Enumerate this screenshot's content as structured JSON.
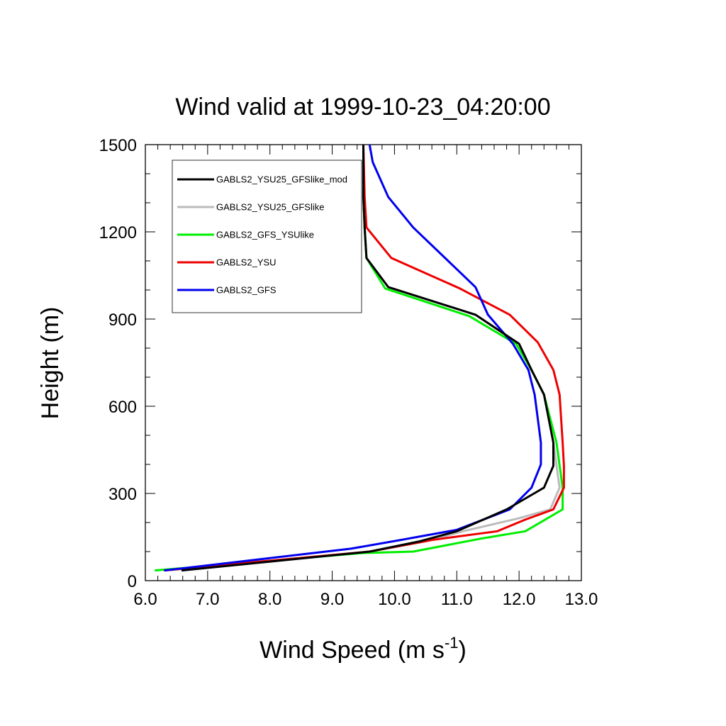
{
  "chart_data": {
    "type": "line",
    "title": "Wind valid at 1999-10-23_04:20:00",
    "xlabel": "Wind Speed (m s",
    "xlabel_sup": "-1",
    "xlabel_end": ")",
    "ylabel": "Height (m)",
    "xlim": [
      6.0,
      13.0
    ],
    "ylim": [
      0,
      1500
    ],
    "x_ticks": [
      6.0,
      7.0,
      8.0,
      9.0,
      10.0,
      11.0,
      12.0,
      13.0
    ],
    "x_tick_labels": [
      "6.0",
      "7.0",
      "8.0",
      "9.0",
      "10.0",
      "11.0",
      "12.0",
      "13.0"
    ],
    "y_ticks": [
      0,
      300,
      600,
      900,
      1200,
      1500
    ],
    "y_tick_labels": [
      "0",
      "300",
      "600",
      "900",
      "1200",
      "1500"
    ],
    "grid": false,
    "legend_position": "top-left",
    "series": [
      {
        "name": "GABLS2_YSU25_GFSlike_mod",
        "color": "#000000",
        "points": [
          [
            6.58,
            35
          ],
          [
            9.6,
            100
          ],
          [
            10.4,
            135
          ],
          [
            11.0,
            170
          ],
          [
            11.8,
            245
          ],
          [
            12.4,
            320
          ],
          [
            12.55,
            395
          ],
          [
            12.55,
            475
          ],
          [
            12.4,
            640
          ],
          [
            12.2,
            725
          ],
          [
            12.0,
            815
          ],
          [
            11.3,
            915
          ],
          [
            9.9,
            1010
          ],
          [
            9.55,
            1110
          ],
          [
            9.52,
            1215
          ],
          [
            9.5,
            1320
          ],
          [
            9.5,
            1500
          ]
        ]
      },
      {
        "name": "GABLS2_YSU25_GFSlike",
        "color": "#bbbbbb",
        "points": [
          [
            6.3,
            35
          ],
          [
            9.6,
            100
          ],
          [
            10.5,
            135
          ],
          [
            11.1,
            170
          ],
          [
            12.0,
            215
          ],
          [
            12.5,
            245
          ],
          [
            12.65,
            320
          ],
          [
            12.55,
            475
          ],
          [
            12.4,
            640
          ],
          [
            12.2,
            725
          ],
          [
            12.0,
            815
          ],
          [
            11.3,
            915
          ],
          [
            9.9,
            1010
          ],
          [
            9.55,
            1110
          ],
          [
            9.52,
            1215
          ],
          [
            9.5,
            1320
          ],
          [
            9.5,
            1500
          ]
        ]
      },
      {
        "name": "GABLS2_GFS_YSUlike",
        "color": "#00ee00",
        "points": [
          [
            6.15,
            35
          ],
          [
            9.5,
            95
          ],
          [
            10.3,
            100
          ],
          [
            11.4,
            145
          ],
          [
            12.1,
            170
          ],
          [
            12.7,
            245
          ],
          [
            12.7,
            320
          ],
          [
            12.6,
            475
          ],
          [
            12.4,
            640
          ],
          [
            12.2,
            725
          ],
          [
            11.95,
            815
          ],
          [
            11.2,
            910
          ],
          [
            9.85,
            1005
          ],
          [
            9.55,
            1110
          ],
          [
            9.52,
            1215
          ],
          [
            9.5,
            1320
          ],
          [
            9.5,
            1500
          ]
        ]
      },
      {
        "name": "GABLS2_YSU",
        "color": "#ee0000",
        "points": [
          [
            6.3,
            35
          ],
          [
            9.6,
            100
          ],
          [
            10.6,
            140
          ],
          [
            11.65,
            170
          ],
          [
            12.1,
            210
          ],
          [
            12.55,
            245
          ],
          [
            12.72,
            320
          ],
          [
            12.72,
            395
          ],
          [
            12.7,
            475
          ],
          [
            12.65,
            640
          ],
          [
            12.55,
            725
          ],
          [
            12.3,
            820
          ],
          [
            11.85,
            915
          ],
          [
            11.05,
            1005
          ],
          [
            9.95,
            1110
          ],
          [
            9.55,
            1215
          ],
          [
            9.52,
            1320
          ],
          [
            9.5,
            1500
          ]
        ]
      },
      {
        "name": "GABLS2_GFS",
        "color": "#0000ee",
        "points": [
          [
            6.3,
            35
          ],
          [
            9.3,
            110
          ],
          [
            10.1,
            140
          ],
          [
            11.0,
            175
          ],
          [
            11.85,
            245
          ],
          [
            12.2,
            320
          ],
          [
            12.35,
            400
          ],
          [
            12.35,
            475
          ],
          [
            12.25,
            640
          ],
          [
            12.15,
            725
          ],
          [
            11.9,
            815
          ],
          [
            11.5,
            915
          ],
          [
            11.3,
            1010
          ],
          [
            10.3,
            1215
          ],
          [
            9.9,
            1320
          ],
          [
            9.65,
            1440
          ],
          [
            9.6,
            1500
          ]
        ]
      }
    ]
  }
}
